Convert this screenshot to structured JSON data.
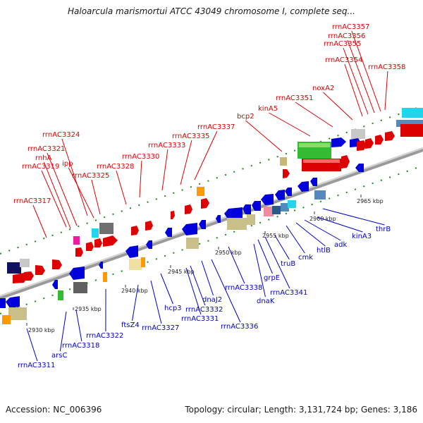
{
  "title": "Haloarcula marismortui ATCC 43049 chromosome I, complete seq...",
  "footer": {
    "accession": "Accession: NC_006396",
    "summary": "Topology: circular; Length: 3,131,724 bp; Genes: 3,186"
  },
  "colors": {
    "forward_label": "#e00000",
    "reverse_label": "#0000cc",
    "backbone": "#808080",
    "tick": "#1a8a1a"
  },
  "scale_ticks": [
    "2930 kbp",
    "2935 kbp",
    "2940 kbp",
    "2945 kbp",
    "2950 kbp",
    "2955 kbp",
    "2960 kbp",
    "2965 kbp"
  ],
  "forward_labels": [
    "rrnAC3317",
    "rrnAC3319",
    "rnhA",
    "rrnAC3321",
    "rrnAC3324",
    "ipp",
    "rrnAC3325",
    "rrnAC3328",
    "rrnAC3330",
    "rrnAC3333",
    "rrnAC3335",
    "rrnAC3337",
    "bcp2",
    "kinA5",
    "rrnAC3351",
    "noxA2",
    "rrnAC3354",
    "rrnAC3355",
    "rrnAC3356",
    "rrnAC3357",
    "rrnAC3358"
  ],
  "reverse_labels": [
    "rrnAC3311",
    "arsC",
    "rrnAC3318",
    "rrnAC3322",
    "ftsZ4",
    "rrnAC3327",
    "hcp3",
    "rrnAC3331",
    "rrnAC3332",
    "dnaJ2",
    "rrnAC3336",
    "rrnAC3338",
    "dnaK",
    "grpE",
    "rrnAC3341",
    "truB",
    "cmk",
    "htlB",
    "adk",
    "kinA3",
    "thrB"
  ]
}
